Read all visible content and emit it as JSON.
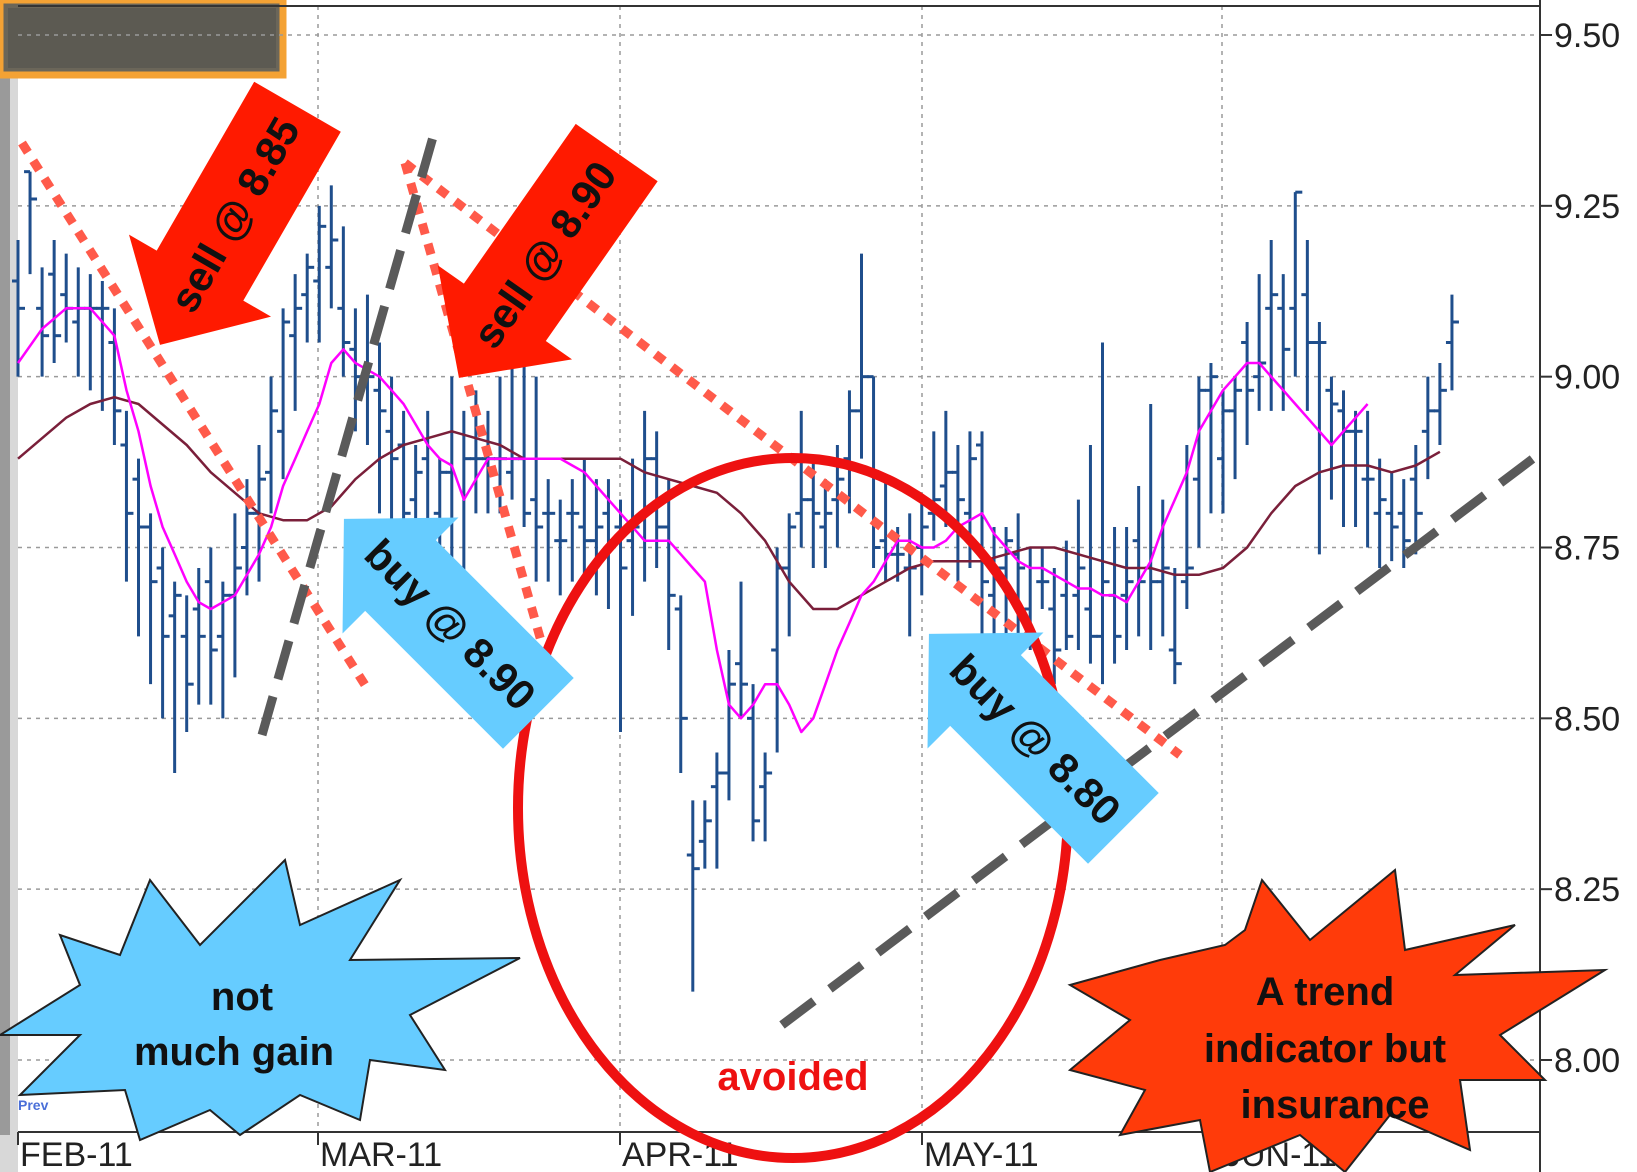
{
  "chart_data": {
    "type": "ohlc",
    "title": "",
    "xlabel": "",
    "ylabel": "",
    "ylim": [
      7.98,
      9.55
    ],
    "y_ticks": [
      "9.50",
      "9.25",
      "9.00",
      "8.75",
      "8.50",
      "8.25",
      "8.00"
    ],
    "x_tick_labels": [
      "FEB-11",
      "MAR-11",
      "APR-11",
      "MAY-11",
      "JUN-11"
    ],
    "grid": true,
    "colors": {
      "bars": "#1f4e8c",
      "fast_ma": "#ff00ff",
      "slow_ma": "#7a1f3a",
      "resistance": "#ff5a4a",
      "support": "#5a5a5a",
      "sell_arrow": "#ff1a00",
      "buy_arrow": "#66ccff",
      "circle": "#ee1111"
    },
    "bars": [
      [
        0,
        9.14,
        9.2,
        9.0,
        9.1
      ],
      [
        1,
        9.3,
        9.3,
        9.15,
        9.26
      ],
      [
        2,
        9.1,
        9.16,
        9.0,
        9.06
      ],
      [
        3,
        9.15,
        9.2,
        9.02,
        9.06
      ],
      [
        4,
        9.12,
        9.18,
        9.05,
        9.1
      ],
      [
        5,
        9.08,
        9.16,
        9.0,
        9.1
      ],
      [
        6,
        9.1,
        9.15,
        8.98,
        9.1
      ],
      [
        7,
        9.1,
        9.14,
        8.95,
        9.1
      ],
      [
        8,
        9.05,
        9.1,
        8.9,
        8.95
      ],
      [
        9,
        8.9,
        8.95,
        8.7,
        8.8
      ],
      [
        10,
        8.85,
        8.88,
        8.62,
        8.78
      ],
      [
        11,
        8.78,
        8.8,
        8.55,
        8.7
      ],
      [
        12,
        8.72,
        8.75,
        8.5,
        8.62
      ],
      [
        13,
        8.65,
        8.7,
        8.42,
        8.68
      ],
      [
        14,
        8.62,
        8.68,
        8.48,
        8.55
      ],
      [
        15,
        8.66,
        8.72,
        8.52,
        8.62
      ],
      [
        16,
        8.7,
        8.75,
        8.52,
        8.6
      ],
      [
        17,
        8.62,
        8.7,
        8.5,
        8.68
      ],
      [
        18,
        8.68,
        8.8,
        8.56,
        8.72
      ],
      [
        19,
        8.75,
        8.85,
        8.68,
        8.8
      ],
      [
        20,
        8.8,
        8.9,
        8.7,
        8.85
      ],
      [
        21,
        8.86,
        9.0,
        8.8,
        8.95
      ],
      [
        22,
        8.92,
        9.1,
        8.85,
        9.08
      ],
      [
        23,
        9.06,
        9.15,
        8.95,
        9.1
      ],
      [
        24,
        9.12,
        9.18,
        9.05,
        9.16
      ],
      [
        25,
        9.14,
        9.25,
        9.05,
        9.22
      ],
      [
        26,
        9.16,
        9.28,
        9.1,
        9.2
      ],
      [
        27,
        9.1,
        9.22,
        9.0,
        9.05
      ],
      [
        28,
        9.04,
        9.1,
        8.92,
        9.0
      ],
      [
        29,
        9.0,
        9.12,
        8.9,
        9.0
      ],
      [
        30,
        8.98,
        9.05,
        8.8,
        8.95
      ],
      [
        31,
        8.92,
        9.0,
        8.78,
        8.88
      ],
      [
        32,
        8.9,
        8.95,
        8.75,
        8.8
      ],
      [
        33,
        8.82,
        8.9,
        8.78,
        8.86
      ],
      [
        34,
        8.88,
        8.95,
        8.72,
        8.76
      ],
      [
        35,
        8.8,
        8.88,
        8.7,
        8.86
      ],
      [
        36,
        8.86,
        9.0,
        8.65,
        8.7
      ],
      [
        37,
        8.72,
        8.95,
        8.68,
        8.88
      ],
      [
        38,
        8.88,
        8.98,
        8.8,
        8.88
      ],
      [
        39,
        8.88,
        8.95,
        8.8,
        8.88
      ],
      [
        40,
        8.88,
        9.0,
        8.8,
        8.88
      ],
      [
        41,
        8.86,
        9.05,
        8.82,
        8.88
      ],
      [
        42,
        8.88,
        9.08,
        8.78,
        8.8
      ],
      [
        43,
        8.82,
        9.0,
        8.7,
        8.78
      ],
      [
        44,
        8.8,
        8.85,
        8.7,
        8.8
      ],
      [
        45,
        8.76,
        8.82,
        8.68,
        8.76
      ],
      [
        46,
        8.8,
        8.85,
        8.7,
        8.8
      ],
      [
        47,
        8.78,
        8.88,
        8.7,
        8.76
      ],
      [
        48,
        8.76,
        8.85,
        8.68,
        8.78
      ],
      [
        49,
        8.8,
        8.85,
        8.66,
        8.76
      ],
      [
        50,
        8.78,
        8.82,
        8.48,
        8.72
      ],
      [
        51,
        8.76,
        8.88,
        8.65,
        8.78
      ],
      [
        52,
        8.8,
        8.95,
        8.7,
        8.88
      ],
      [
        53,
        8.88,
        8.92,
        8.72,
        8.78
      ],
      [
        54,
        8.78,
        8.85,
        8.6,
        8.68
      ],
      [
        55,
        8.66,
        8.68,
        8.42,
        8.5
      ],
      [
        56,
        8.3,
        8.38,
        8.1,
        8.28
      ],
      [
        57,
        8.32,
        8.38,
        8.28,
        8.35
      ],
      [
        58,
        8.4,
        8.45,
        8.28,
        8.42
      ],
      [
        59,
        8.42,
        8.6,
        8.38,
        8.55
      ],
      [
        60,
        8.58,
        8.7,
        8.5,
        8.55
      ],
      [
        61,
        8.5,
        8.55,
        8.32,
        8.35
      ],
      [
        62,
        8.4,
        8.45,
        8.32,
        8.42
      ],
      [
        63,
        8.6,
        8.75,
        8.45,
        8.72
      ],
      [
        64,
        8.72,
        8.8,
        8.62,
        8.78
      ],
      [
        65,
        8.8,
        8.95,
        8.75,
        8.82
      ],
      [
        66,
        8.82,
        8.88,
        8.72,
        8.8
      ],
      [
        67,
        8.78,
        8.85,
        8.72,
        8.8
      ],
      [
        68,
        8.82,
        8.9,
        8.75,
        8.85
      ],
      [
        69,
        8.88,
        8.98,
        8.8,
        8.95
      ],
      [
        70,
        8.95,
        9.18,
        8.88,
        9.0
      ],
      [
        71,
        9.0,
        9.0,
        8.72,
        8.75
      ],
      [
        72,
        8.76,
        8.85,
        8.7,
        8.74
      ],
      [
        73,
        8.74,
        8.78,
        8.7,
        8.74
      ],
      [
        74,
        8.72,
        8.8,
        8.62,
        8.72
      ],
      [
        75,
        8.75,
        8.82,
        8.68,
        8.78
      ],
      [
        76,
        8.8,
        8.92,
        8.76,
        8.82
      ],
      [
        77,
        8.84,
        8.95,
        8.78,
        8.86
      ],
      [
        78,
        8.86,
        8.9,
        8.7,
        8.82
      ],
      [
        79,
        8.8,
        8.92,
        8.72,
        8.88
      ],
      [
        80,
        8.9,
        8.92,
        8.6,
        8.7
      ],
      [
        81,
        8.68,
        8.78,
        8.6,
        8.72
      ],
      [
        82,
        8.72,
        8.78,
        8.62,
        8.76
      ],
      [
        83,
        8.74,
        8.8,
        8.62,
        8.72
      ],
      [
        84,
        8.66,
        8.75,
        8.6,
        8.62
      ],
      [
        85,
        8.7,
        8.75,
        8.66,
        8.7
      ],
      [
        86,
        8.66,
        8.72,
        8.55,
        8.6
      ],
      [
        87,
        8.68,
        8.76,
        8.6,
        8.62
      ],
      [
        88,
        8.68,
        8.82,
        8.6,
        8.72
      ],
      [
        89,
        8.66,
        8.9,
        8.58,
        8.62
      ],
      [
        90,
        8.62,
        9.05,
        8.55,
        8.7
      ],
      [
        91,
        8.68,
        8.78,
        8.58,
        8.62
      ],
      [
        92,
        8.68,
        8.78,
        8.6,
        8.7
      ],
      [
        93,
        8.76,
        8.84,
        8.62,
        8.7
      ],
      [
        94,
        8.72,
        8.96,
        8.6,
        8.7
      ],
      [
        95,
        8.7,
        8.82,
        8.62,
        8.72
      ],
      [
        96,
        8.6,
        8.72,
        8.55,
        8.58
      ],
      [
        97,
        8.7,
        8.9,
        8.66,
        8.72
      ],
      [
        98,
        8.85,
        9.0,
        8.75,
        8.98
      ],
      [
        99,
        8.98,
        9.02,
        8.8,
        9.0
      ],
      [
        100,
        8.88,
        8.98,
        8.8,
        8.95
      ],
      [
        101,
        8.95,
        9.0,
        8.85,
        8.98
      ],
      [
        102,
        9.05,
        9.08,
        8.9,
        8.98
      ],
      [
        103,
        9.0,
        9.15,
        8.95,
        9.02
      ],
      [
        104,
        9.1,
        9.2,
        8.95,
        9.12
      ],
      [
        105,
        9.1,
        9.15,
        8.95,
        9.04
      ],
      [
        106,
        9.1,
        9.27,
        9.0,
        9.27
      ],
      [
        107,
        9.12,
        9.2,
        8.95,
        9.05
      ],
      [
        108,
        9.05,
        9.08,
        8.74,
        9.05
      ],
      [
        109,
        8.98,
        9.0,
        8.82,
        8.96
      ],
      [
        110,
        8.95,
        8.98,
        8.78,
        8.92
      ],
      [
        111,
        8.92,
        8.95,
        8.78,
        8.92
      ],
      [
        112,
        8.85,
        8.95,
        8.75,
        8.85
      ],
      [
        113,
        8.8,
        8.88,
        8.72,
        8.82
      ],
      [
        114,
        8.8,
        8.86,
        8.73,
        8.78
      ],
      [
        115,
        8.8,
        8.85,
        8.72,
        8.76
      ],
      [
        116,
        8.85,
        8.9,
        8.74,
        8.8
      ],
      [
        117,
        8.92,
        9.0,
        8.85,
        8.95
      ],
      [
        118,
        8.95,
        9.02,
        8.9,
        8.98
      ],
      [
        119,
        9.05,
        9.12,
        8.98,
        9.08
      ]
    ],
    "fast_ma": [
      [
        0,
        9.02
      ],
      [
        2,
        9.07
      ],
      [
        4,
        9.1
      ],
      [
        6,
        9.1
      ],
      [
        8,
        9.06
      ],
      [
        9,
        8.98
      ],
      [
        10,
        8.92
      ],
      [
        11,
        8.84
      ],
      [
        12,
        8.78
      ],
      [
        13,
        8.74
      ],
      [
        14,
        8.7
      ],
      [
        15,
        8.67
      ],
      [
        16,
        8.66
      ],
      [
        17,
        8.67
      ],
      [
        18,
        8.68
      ],
      [
        19,
        8.71
      ],
      [
        20,
        8.74
      ],
      [
        21,
        8.78
      ],
      [
        22,
        8.84
      ],
      [
        23,
        8.88
      ],
      [
        24,
        8.92
      ],
      [
        25,
        8.96
      ],
      [
        26,
        9.02
      ],
      [
        27,
        9.04
      ],
      [
        28,
        9.02
      ],
      [
        29,
        9.01
      ],
      [
        30,
        9.0
      ],
      [
        31,
        8.98
      ],
      [
        32,
        8.96
      ],
      [
        33,
        8.93
      ],
      [
        34,
        8.9
      ],
      [
        35,
        8.88
      ],
      [
        36,
        8.87
      ],
      [
        37,
        8.82
      ],
      [
        38,
        8.85
      ],
      [
        39,
        8.88
      ],
      [
        40,
        8.88
      ],
      [
        41,
        8.88
      ],
      [
        42,
        8.88
      ],
      [
        43,
        8.88
      ],
      [
        44,
        8.88
      ],
      [
        45,
        8.88
      ],
      [
        46,
        8.87
      ],
      [
        47,
        8.86
      ],
      [
        48,
        8.84
      ],
      [
        49,
        8.82
      ],
      [
        50,
        8.8
      ],
      [
        51,
        8.78
      ],
      [
        52,
        8.76
      ],
      [
        53,
        8.76
      ],
      [
        54,
        8.76
      ],
      [
        55,
        8.74
      ],
      [
        56,
        8.72
      ],
      [
        57,
        8.7
      ],
      [
        58,
        8.6
      ],
      [
        59,
        8.52
      ],
      [
        60,
        8.5
      ],
      [
        61,
        8.52
      ],
      [
        62,
        8.55
      ],
      [
        63,
        8.55
      ],
      [
        64,
        8.52
      ],
      [
        65,
        8.48
      ],
      [
        66,
        8.5
      ],
      [
        67,
        8.55
      ],
      [
        68,
        8.6
      ],
      [
        69,
        8.64
      ],
      [
        70,
        8.68
      ],
      [
        71,
        8.7
      ],
      [
        72,
        8.73
      ],
      [
        73,
        8.76
      ],
      [
        74,
        8.76
      ],
      [
        75,
        8.75
      ],
      [
        76,
        8.75
      ],
      [
        77,
        8.76
      ],
      [
        78,
        8.78
      ],
      [
        79,
        8.79
      ],
      [
        80,
        8.8
      ],
      [
        81,
        8.77
      ],
      [
        82,
        8.75
      ],
      [
        83,
        8.73
      ],
      [
        84,
        8.72
      ],
      [
        85,
        8.72
      ],
      [
        86,
        8.71
      ],
      [
        87,
        8.7
      ],
      [
        88,
        8.69
      ],
      [
        89,
        8.69
      ],
      [
        90,
        8.68
      ],
      [
        91,
        8.68
      ],
      [
        92,
        8.67
      ],
      [
        93,
        8.7
      ],
      [
        94,
        8.73
      ],
      [
        95,
        8.78
      ],
      [
        96,
        8.82
      ],
      [
        97,
        8.86
      ],
      [
        98,
        8.92
      ],
      [
        99,
        8.95
      ],
      [
        100,
        8.98
      ],
      [
        101,
        9.0
      ],
      [
        102,
        9.02
      ],
      [
        103,
        9.02
      ],
      [
        104,
        9.0
      ],
      [
        105,
        8.98
      ],
      [
        106,
        8.96
      ],
      [
        107,
        8.94
      ],
      [
        108,
        8.92
      ],
      [
        109,
        8.9
      ],
      [
        110,
        8.92
      ],
      [
        111,
        8.94
      ],
      [
        112,
        8.96
      ]
    ],
    "slow_ma": [
      [
        0,
        8.88
      ],
      [
        2,
        8.91
      ],
      [
        4,
        8.94
      ],
      [
        6,
        8.96
      ],
      [
        8,
        8.97
      ],
      [
        10,
        8.96
      ],
      [
        12,
        8.93
      ],
      [
        14,
        8.9
      ],
      [
        16,
        8.86
      ],
      [
        18,
        8.83
      ],
      [
        20,
        8.8
      ],
      [
        22,
        8.79
      ],
      [
        24,
        8.79
      ],
      [
        26,
        8.81
      ],
      [
        28,
        8.85
      ],
      [
        30,
        8.88
      ],
      [
        32,
        8.9
      ],
      [
        34,
        8.91
      ],
      [
        36,
        8.92
      ],
      [
        38,
        8.91
      ],
      [
        40,
        8.9
      ],
      [
        42,
        8.88
      ],
      [
        44,
        8.88
      ],
      [
        46,
        8.88
      ],
      [
        48,
        8.88
      ],
      [
        50,
        8.88
      ],
      [
        52,
        8.86
      ],
      [
        54,
        8.85
      ],
      [
        56,
        8.84
      ],
      [
        58,
        8.83
      ],
      [
        60,
        8.8
      ],
      [
        62,
        8.76
      ],
      [
        64,
        8.7
      ],
      [
        66,
        8.66
      ],
      [
        68,
        8.66
      ],
      [
        70,
        8.68
      ],
      [
        72,
        8.7
      ],
      [
        74,
        8.72
      ],
      [
        76,
        8.73
      ],
      [
        78,
        8.73
      ],
      [
        80,
        8.73
      ],
      [
        82,
        8.74
      ],
      [
        84,
        8.75
      ],
      [
        86,
        8.75
      ],
      [
        88,
        8.74
      ],
      [
        90,
        8.73
      ],
      [
        92,
        8.72
      ],
      [
        94,
        8.72
      ],
      [
        96,
        8.71
      ],
      [
        98,
        8.71
      ],
      [
        100,
        8.72
      ],
      [
        102,
        8.75
      ],
      [
        104,
        8.8
      ],
      [
        106,
        8.84
      ],
      [
        108,
        8.86
      ],
      [
        110,
        8.87
      ],
      [
        112,
        8.87
      ],
      [
        114,
        8.86
      ],
      [
        116,
        8.87
      ],
      [
        118,
        8.89
      ]
    ]
  },
  "annotations": {
    "sell_1": "sell @ 8.85",
    "sell_2": "sell @ 8.90",
    "buy_1": "buy @ 8.90",
    "buy_2": "buy @ 8.80",
    "circle_label": "avoided",
    "burst_left_line1": "not",
    "burst_left_line2": "much gain",
    "burst_right_line1": "A trend",
    "burst_right_line2": "indicator but",
    "burst_right_line3": "insurance",
    "footer_small": "Prev"
  }
}
